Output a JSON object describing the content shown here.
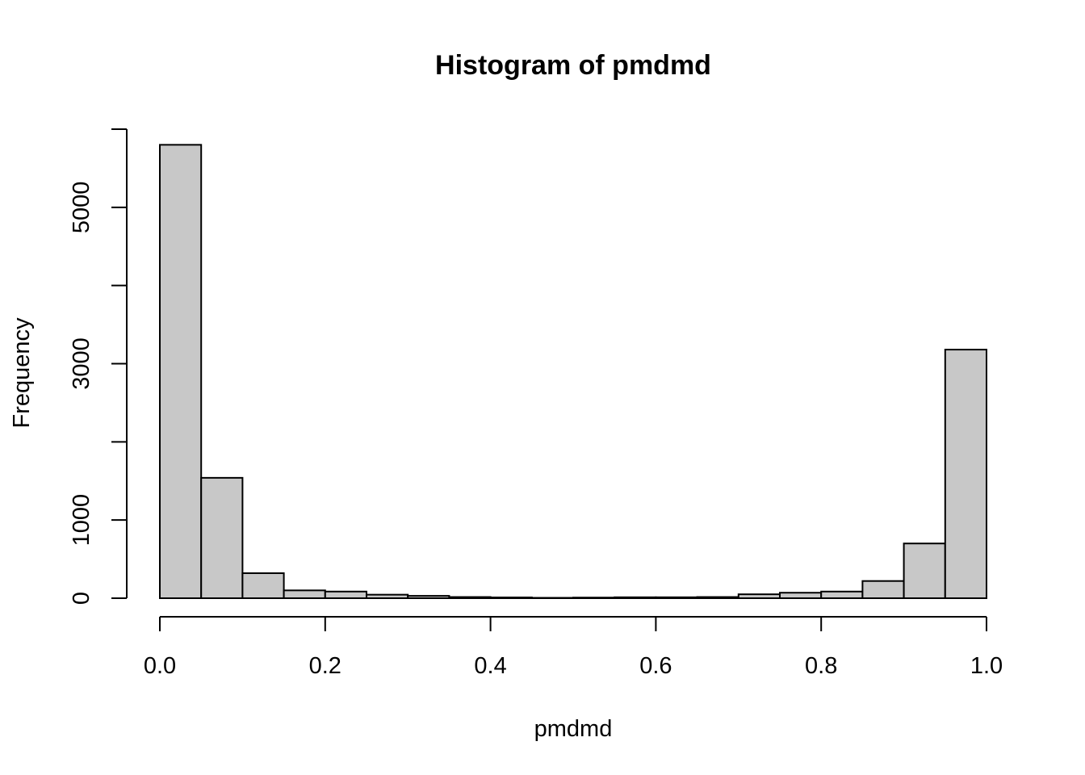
{
  "chart_data": {
    "type": "bar",
    "subtype": "histogram",
    "title": "Histogram of pmdmd",
    "xlabel": "pmdmd",
    "ylabel": "Frequency",
    "bins": [
      {
        "x0": 0.0,
        "x1": 0.05,
        "count": 5800
      },
      {
        "x0": 0.05,
        "x1": 0.1,
        "count": 1540
      },
      {
        "x0": 0.1,
        "x1": 0.15,
        "count": 320
      },
      {
        "x0": 0.15,
        "x1": 0.2,
        "count": 100
      },
      {
        "x0": 0.2,
        "x1": 0.25,
        "count": 85
      },
      {
        "x0": 0.25,
        "x1": 0.3,
        "count": 45
      },
      {
        "x0": 0.3,
        "x1": 0.35,
        "count": 30
      },
      {
        "x0": 0.35,
        "x1": 0.4,
        "count": 15
      },
      {
        "x0": 0.4,
        "x1": 0.45,
        "count": 10
      },
      {
        "x0": 0.45,
        "x1": 0.5,
        "count": 5
      },
      {
        "x0": 0.5,
        "x1": 0.55,
        "count": 8
      },
      {
        "x0": 0.55,
        "x1": 0.6,
        "count": 12
      },
      {
        "x0": 0.6,
        "x1": 0.65,
        "count": 12
      },
      {
        "x0": 0.65,
        "x1": 0.7,
        "count": 15
      },
      {
        "x0": 0.7,
        "x1": 0.75,
        "count": 50
      },
      {
        "x0": 0.75,
        "x1": 0.8,
        "count": 70
      },
      {
        "x0": 0.8,
        "x1": 0.85,
        "count": 85
      },
      {
        "x0": 0.85,
        "x1": 0.9,
        "count": 220
      },
      {
        "x0": 0.9,
        "x1": 0.95,
        "count": 700
      },
      {
        "x0": 0.95,
        "x1": 1.0,
        "count": 3180
      }
    ],
    "xlim": [
      0,
      1
    ],
    "ylim": [
      0,
      6000
    ],
    "x_ticks": [
      0,
      0.2,
      0.4,
      0.6,
      0.8,
      1.0
    ],
    "x_tick_labels": [
      "0.0",
      "0.2",
      "0.4",
      "0.6",
      "0.8",
      "1.0"
    ],
    "y_ticks": [
      0,
      1000,
      2000,
      3000,
      4000,
      5000,
      6000
    ],
    "y_tick_labels": [
      "0",
      "1000",
      "",
      "3000",
      "",
      "5000",
      ""
    ],
    "grid": false,
    "bar_color": "#c8c8c8",
    "edge_color": "#000000"
  }
}
